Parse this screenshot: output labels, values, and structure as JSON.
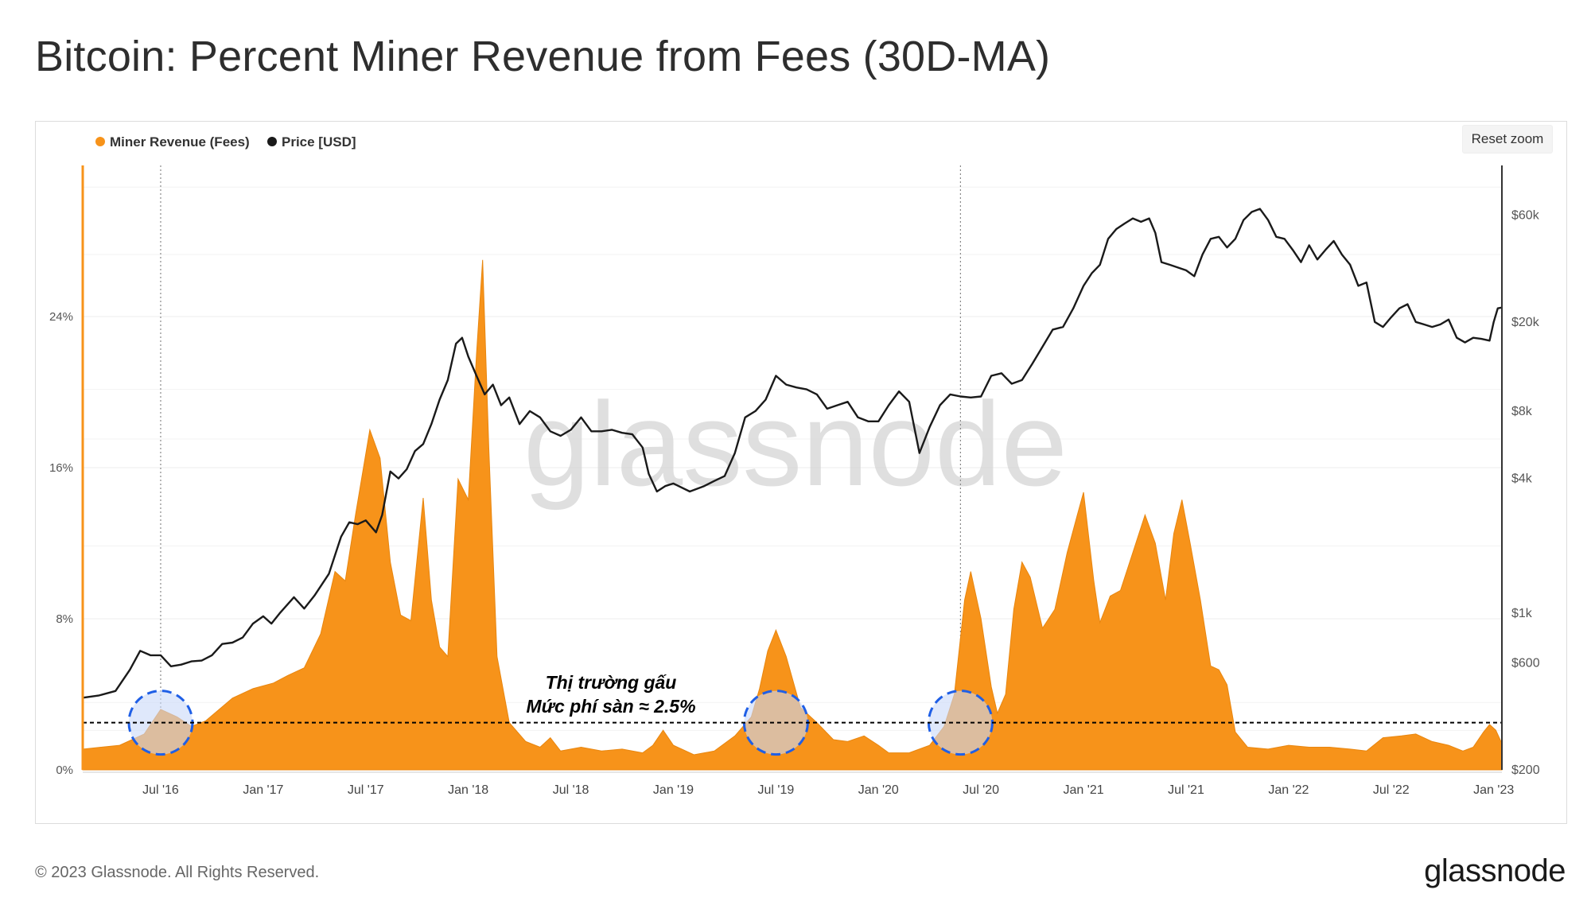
{
  "page": {
    "title": "Bitcoin: Percent Miner Revenue from Fees (30D-MA)"
  },
  "toolbar": {
    "reset_zoom": "Reset zoom"
  },
  "footer": {
    "copyright": "© 2023 Glassnode. All Rights Reserved.",
    "logo": "glassnode"
  },
  "watermark": "glassnode",
  "annotation": {
    "line1": "Thị trường gấu",
    "line2": "Mức phí sàn ≈ 2.5%"
  },
  "colors": {
    "fees": "#f7931a",
    "price": "#1a1a1a",
    "threshold": "#000000",
    "circle": "#1f5fe6",
    "circle_fill": "#c9d8f8"
  },
  "chart_data": {
    "type": "area+line",
    "title": "Bitcoin: Percent Miner Revenue from Fees (30D-MA)",
    "legend": [
      {
        "name": "Miner Revenue (Fees)",
        "color": "#f7931a"
      },
      {
        "name": "Price [USD]",
        "color": "#1a1a1a"
      }
    ],
    "x_ticks": [
      "Jul '16",
      "Jan '17",
      "Jul '17",
      "Jan '18",
      "Jul '18",
      "Jan '19",
      "Jul '19",
      "Jan '20",
      "Jul '20",
      "Jan '21",
      "Jul '21",
      "Jan '22",
      "Jul '22",
      "Jan '23"
    ],
    "xlim": [
      2016.12,
      2023.04
    ],
    "y_left": {
      "ticks": [
        "0%",
        "8%",
        "16%",
        "24%"
      ],
      "tick_values": [
        0,
        8,
        16,
        24
      ],
      "ylim": [
        0,
        32
      ]
    },
    "y_right": {
      "ticks": [
        "$200",
        "$600",
        "$1k",
        "$4k",
        "$8k",
        "$20k",
        "$60k"
      ],
      "tick_values": [
        200,
        600,
        1000,
        4000,
        8000,
        20000,
        60000
      ],
      "scale": "log",
      "ylim": [
        200,
        100000
      ]
    },
    "threshold_percent": 2.5,
    "highlight_dates": [
      2016.5,
      2019.5,
      2020.4
    ],
    "series": [
      {
        "name": "Miner Revenue (Fees)",
        "unit": "%",
        "points": [
          [
            2016.12,
            1.1
          ],
          [
            2016.3,
            1.3
          ],
          [
            2016.42,
            1.9
          ],
          [
            2016.5,
            3.2
          ],
          [
            2016.58,
            2.8
          ],
          [
            2016.65,
            2.3
          ],
          [
            2016.72,
            2.6
          ],
          [
            2016.85,
            3.8
          ],
          [
            2016.95,
            4.3
          ],
          [
            2017.05,
            4.6
          ],
          [
            2017.12,
            5.0
          ],
          [
            2017.2,
            5.4
          ],
          [
            2017.28,
            7.2
          ],
          [
            2017.35,
            10.5
          ],
          [
            2017.4,
            10.0
          ],
          [
            2017.45,
            13.5
          ],
          [
            2017.52,
            18.0
          ],
          [
            2017.57,
            16.5
          ],
          [
            2017.62,
            11.0
          ],
          [
            2017.67,
            8.2
          ],
          [
            2017.72,
            7.9
          ],
          [
            2017.78,
            14.4
          ],
          [
            2017.82,
            9.0
          ],
          [
            2017.86,
            6.5
          ],
          [
            2017.9,
            6.0
          ],
          [
            2017.95,
            15.4
          ],
          [
            2018.0,
            14.3
          ],
          [
            2018.04,
            22.0
          ],
          [
            2018.07,
            27.0
          ],
          [
            2018.1,
            17.0
          ],
          [
            2018.14,
            6.0
          ],
          [
            2018.2,
            2.5
          ],
          [
            2018.28,
            1.5
          ],
          [
            2018.35,
            1.2
          ],
          [
            2018.4,
            1.7
          ],
          [
            2018.45,
            1.0
          ],
          [
            2018.55,
            1.2
          ],
          [
            2018.65,
            1.0
          ],
          [
            2018.75,
            1.1
          ],
          [
            2018.85,
            0.9
          ],
          [
            2018.9,
            1.3
          ],
          [
            2018.95,
            2.1
          ],
          [
            2019.0,
            1.3
          ],
          [
            2019.1,
            0.8
          ],
          [
            2019.2,
            1.0
          ],
          [
            2019.3,
            1.8
          ],
          [
            2019.38,
            2.8
          ],
          [
            2019.42,
            4.3
          ],
          [
            2019.46,
            6.3
          ],
          [
            2019.5,
            7.4
          ],
          [
            2019.55,
            6.0
          ],
          [
            2019.62,
            3.3
          ],
          [
            2019.7,
            2.5
          ],
          [
            2019.78,
            1.6
          ],
          [
            2019.85,
            1.5
          ],
          [
            2019.93,
            1.8
          ],
          [
            2020.0,
            1.3
          ],
          [
            2020.05,
            0.9
          ],
          [
            2020.15,
            0.9
          ],
          [
            2020.25,
            1.3
          ],
          [
            2020.32,
            2.3
          ],
          [
            2020.37,
            4.0
          ],
          [
            2020.42,
            9.0
          ],
          [
            2020.45,
            10.5
          ],
          [
            2020.5,
            8.0
          ],
          [
            2020.55,
            4.4
          ],
          [
            2020.58,
            3.0
          ],
          [
            2020.62,
            4.0
          ],
          [
            2020.66,
            8.5
          ],
          [
            2020.7,
            11.0
          ],
          [
            2020.74,
            10.2
          ],
          [
            2020.8,
            7.5
          ],
          [
            2020.86,
            8.5
          ],
          [
            2020.92,
            11.5
          ],
          [
            2020.97,
            13.5
          ],
          [
            2021.0,
            14.7
          ],
          [
            2021.05,
            10.0
          ],
          [
            2021.08,
            7.8
          ],
          [
            2021.13,
            9.2
          ],
          [
            2021.18,
            9.5
          ],
          [
            2021.24,
            11.5
          ],
          [
            2021.3,
            13.5
          ],
          [
            2021.35,
            12.0
          ],
          [
            2021.4,
            9.0
          ],
          [
            2021.44,
            12.5
          ],
          [
            2021.48,
            14.3
          ],
          [
            2021.52,
            12.0
          ],
          [
            2021.57,
            9.0
          ],
          [
            2021.62,
            5.5
          ],
          [
            2021.66,
            5.3
          ],
          [
            2021.7,
            4.5
          ],
          [
            2021.74,
            2.0
          ],
          [
            2021.8,
            1.2
          ],
          [
            2021.9,
            1.1
          ],
          [
            2022.0,
            1.3
          ],
          [
            2022.1,
            1.2
          ],
          [
            2022.2,
            1.2
          ],
          [
            2022.3,
            1.1
          ],
          [
            2022.38,
            1.0
          ],
          [
            2022.46,
            1.7
          ],
          [
            2022.55,
            1.8
          ],
          [
            2022.62,
            1.9
          ],
          [
            2022.7,
            1.5
          ],
          [
            2022.78,
            1.3
          ],
          [
            2022.85,
            1.0
          ],
          [
            2022.9,
            1.2
          ],
          [
            2022.95,
            2.0
          ],
          [
            2022.98,
            2.4
          ],
          [
            2023.01,
            2.1
          ],
          [
            2023.04,
            1.4
          ]
        ]
      },
      {
        "name": "Price [USD]",
        "unit": "USD",
        "points": [
          [
            2016.12,
            420
          ],
          [
            2016.2,
            430
          ],
          [
            2016.28,
            450
          ],
          [
            2016.35,
            560
          ],
          [
            2016.4,
            680
          ],
          [
            2016.45,
            650
          ],
          [
            2016.5,
            650
          ],
          [
            2016.55,
            580
          ],
          [
            2016.6,
            590
          ],
          [
            2016.65,
            610
          ],
          [
            2016.7,
            615
          ],
          [
            2016.75,
            650
          ],
          [
            2016.8,
            730
          ],
          [
            2016.85,
            740
          ],
          [
            2016.9,
            780
          ],
          [
            2016.95,
            900
          ],
          [
            2017.0,
            970
          ],
          [
            2017.04,
            900
          ],
          [
            2017.08,
            1000
          ],
          [
            2017.15,
            1180
          ],
          [
            2017.2,
            1050
          ],
          [
            2017.25,
            1200
          ],
          [
            2017.32,
            1500
          ],
          [
            2017.38,
            2200
          ],
          [
            2017.42,
            2550
          ],
          [
            2017.46,
            2500
          ],
          [
            2017.5,
            2600
          ],
          [
            2017.55,
            2300
          ],
          [
            2017.58,
            2750
          ],
          [
            2017.62,
            4300
          ],
          [
            2017.66,
            4000
          ],
          [
            2017.7,
            4400
          ],
          [
            2017.74,
            5300
          ],
          [
            2017.78,
            5700
          ],
          [
            2017.82,
            7000
          ],
          [
            2017.86,
            9000
          ],
          [
            2017.9,
            11000
          ],
          [
            2017.94,
            16000
          ],
          [
            2017.97,
            17000
          ],
          [
            2018.0,
            14000
          ],
          [
            2018.04,
            11500
          ],
          [
            2018.08,
            9500
          ],
          [
            2018.12,
            10500
          ],
          [
            2018.16,
            8500
          ],
          [
            2018.2,
            9200
          ],
          [
            2018.25,
            7000
          ],
          [
            2018.3,
            8000
          ],
          [
            2018.35,
            7500
          ],
          [
            2018.4,
            6500
          ],
          [
            2018.45,
            6200
          ],
          [
            2018.5,
            6600
          ],
          [
            2018.55,
            7500
          ],
          [
            2018.6,
            6500
          ],
          [
            2018.65,
            6500
          ],
          [
            2018.7,
            6600
          ],
          [
            2018.75,
            6400
          ],
          [
            2018.8,
            6300
          ],
          [
            2018.85,
            5500
          ],
          [
            2018.88,
            4200
          ],
          [
            2018.92,
            3500
          ],
          [
            2018.96,
            3700
          ],
          [
            2019.0,
            3800
          ],
          [
            2019.08,
            3500
          ],
          [
            2019.15,
            3700
          ],
          [
            2019.2,
            3900
          ],
          [
            2019.25,
            4100
          ],
          [
            2019.3,
            5200
          ],
          [
            2019.35,
            7500
          ],
          [
            2019.4,
            8000
          ],
          [
            2019.45,
            9000
          ],
          [
            2019.5,
            11500
          ],
          [
            2019.55,
            10500
          ],
          [
            2019.6,
            10200
          ],
          [
            2019.65,
            10000
          ],
          [
            2019.7,
            9500
          ],
          [
            2019.75,
            8200
          ],
          [
            2019.8,
            8500
          ],
          [
            2019.85,
            8800
          ],
          [
            2019.9,
            7500
          ],
          [
            2019.95,
            7200
          ],
          [
            2020.0,
            7200
          ],
          [
            2020.05,
            8500
          ],
          [
            2020.1,
            9800
          ],
          [
            2020.15,
            8800
          ],
          [
            2020.2,
            5200
          ],
          [
            2020.25,
            6800
          ],
          [
            2020.3,
            8500
          ],
          [
            2020.35,
            9500
          ],
          [
            2020.4,
            9300
          ],
          [
            2020.45,
            9200
          ],
          [
            2020.5,
            9300
          ],
          [
            2020.55,
            11500
          ],
          [
            2020.6,
            11800
          ],
          [
            2020.65,
            10600
          ],
          [
            2020.7,
            11000
          ],
          [
            2020.75,
            13000
          ],
          [
            2020.8,
            15500
          ],
          [
            2020.85,
            18500
          ],
          [
            2020.9,
            19000
          ],
          [
            2020.95,
            23000
          ],
          [
            2021.0,
            29000
          ],
          [
            2021.04,
            33000
          ],
          [
            2021.08,
            36000
          ],
          [
            2021.12,
            47000
          ],
          [
            2021.16,
            52000
          ],
          [
            2021.2,
            55000
          ],
          [
            2021.24,
            58000
          ],
          [
            2021.28,
            56000
          ],
          [
            2021.32,
            58000
          ],
          [
            2021.35,
            50000
          ],
          [
            2021.38,
            37000
          ],
          [
            2021.42,
            36000
          ],
          [
            2021.46,
            35000
          ],
          [
            2021.5,
            34000
          ],
          [
            2021.54,
            32000
          ],
          [
            2021.58,
            40000
          ],
          [
            2021.62,
            47000
          ],
          [
            2021.66,
            48000
          ],
          [
            2021.7,
            43000
          ],
          [
            2021.74,
            47000
          ],
          [
            2021.78,
            57000
          ],
          [
            2021.82,
            62000
          ],
          [
            2021.86,
            64000
          ],
          [
            2021.9,
            57000
          ],
          [
            2021.94,
            48000
          ],
          [
            2021.98,
            47000
          ],
          [
            2022.02,
            42000
          ],
          [
            2022.06,
            37000
          ],
          [
            2022.1,
            44000
          ],
          [
            2022.14,
            38000
          ],
          [
            2022.18,
            42000
          ],
          [
            2022.22,
            46000
          ],
          [
            2022.26,
            40000
          ],
          [
            2022.3,
            36000
          ],
          [
            2022.34,
            29000
          ],
          [
            2022.38,
            30000
          ],
          [
            2022.42,
            20000
          ],
          [
            2022.46,
            19000
          ],
          [
            2022.5,
            21000
          ],
          [
            2022.54,
            23000
          ],
          [
            2022.58,
            24000
          ],
          [
            2022.62,
            20000
          ],
          [
            2022.66,
            19500
          ],
          [
            2022.7,
            19000
          ],
          [
            2022.74,
            19500
          ],
          [
            2022.78,
            20500
          ],
          [
            2022.82,
            17000
          ],
          [
            2022.86,
            16200
          ],
          [
            2022.9,
            17000
          ],
          [
            2022.94,
            16800
          ],
          [
            2022.98,
            16500
          ],
          [
            2023.0,
            20000
          ],
          [
            2023.02,
            23000
          ],
          [
            2023.04,
            23200
          ]
        ]
      }
    ]
  }
}
